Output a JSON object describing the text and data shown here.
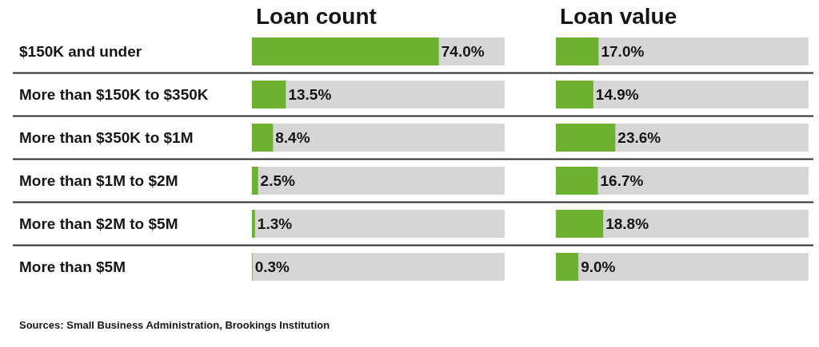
{
  "chart_data": [
    {
      "type": "bar",
      "orientation": "horizontal",
      "title": "Loan count",
      "categories": [
        "$150K and under",
        "More than $150K to $350K",
        "More than $350K to $1M",
        "More than $1M to $2M",
        "More than $2M to $5M",
        "More than $5M"
      ],
      "values": [
        74.0,
        13.5,
        8.4,
        2.5,
        1.3,
        0.3
      ],
      "value_labels": [
        "74.0%",
        "13.5%",
        "8.4%",
        "2.5%",
        "1.3%",
        "0.3%"
      ],
      "color": "#6cb22f",
      "xlim": [
        0,
        100
      ],
      "bands": [
        {
          "axis": "x",
          "from": 0,
          "to": 100,
          "color": "#d6d6d8"
        }
      ],
      "grid": "y",
      "tick_labels": "y",
      "annotations": [
        "Sources: Small Business Administration, Brookings Institution"
      ]
    },
    {
      "type": "bar",
      "orientation": "horizontal",
      "title": "Loan value",
      "values": [
        17.0,
        14.9,
        23.6,
        16.7,
        18.8,
        9.0
      ],
      "value_labels": [
        "17.0%",
        "14.9%",
        "23.6%",
        "16.7%",
        "18.8%",
        "9.0%"
      ],
      "color": "#6cb22f",
      "xlim": [
        0,
        100
      ],
      "bands": [
        {
          "axis": "x",
          "from": 0,
          "to": 100,
          "color": "#d6d6d8"
        }
      ],
      "grid": "y",
      "tick_labels": false
    }
  ]
}
